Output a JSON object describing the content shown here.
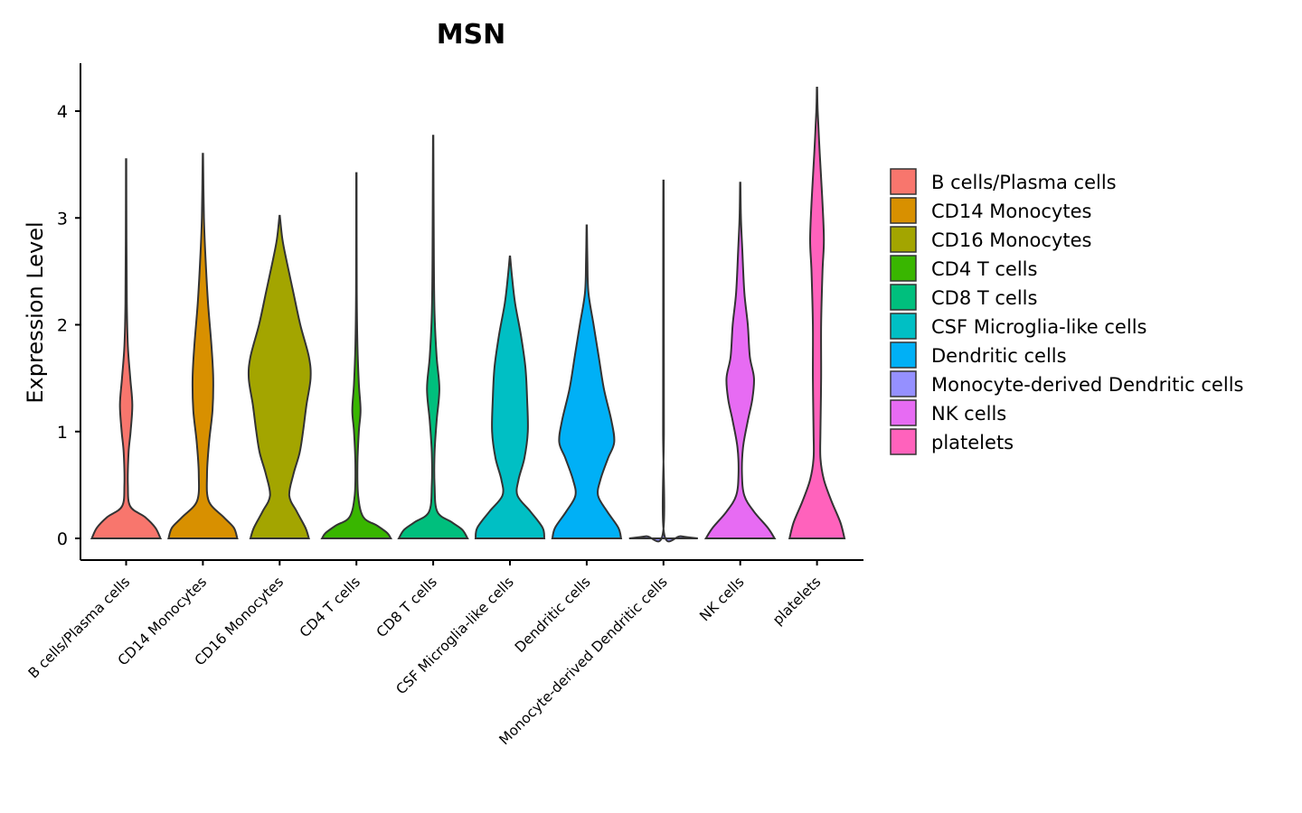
{
  "chart_data": {
    "type": "violin",
    "title": "MSN",
    "xlabel": "",
    "ylabel": "Expression Level",
    "ylim": [
      -0.2,
      4.45
    ],
    "yticks": [
      0,
      1,
      2,
      3,
      4
    ],
    "legend_position": "right",
    "categories": [
      "B cells/Plasma cells",
      "CD14 Monocytes",
      "CD16 Monocytes",
      "CD4 T cells",
      "CD8 T cells",
      "CSF Microglia-like cells",
      "Dendritic cells",
      "Monocyte-derived Dendritic cells",
      "NK cells",
      "platelets"
    ],
    "colors": [
      "#F8766D",
      "#D89000",
      "#A3A500",
      "#39B600",
      "#00BF7D",
      "#00BFC4",
      "#00B0F6",
      "#9590FF",
      "#E76BF3",
      "#FF62BC"
    ],
    "series": [
      {
        "name": "B cells/Plasma cells",
        "max": 3.55,
        "density": [
          [
            0,
            1.0
          ],
          [
            0.1,
            0.85
          ],
          [
            0.2,
            0.55
          ],
          [
            0.3,
            0.12
          ],
          [
            0.5,
            0.05
          ],
          [
            0.8,
            0.07
          ],
          [
            1.0,
            0.13
          ],
          [
            1.25,
            0.18
          ],
          [
            1.5,
            0.12
          ],
          [
            1.8,
            0.05
          ],
          [
            2.2,
            0.02
          ],
          [
            2.8,
            0.01
          ],
          [
            3.55,
            0.005
          ]
        ]
      },
      {
        "name": "CD14 Monocytes",
        "max": 3.6,
        "density": [
          [
            0,
            1.0
          ],
          [
            0.1,
            0.9
          ],
          [
            0.2,
            0.6
          ],
          [
            0.35,
            0.17
          ],
          [
            0.6,
            0.12
          ],
          [
            0.9,
            0.18
          ],
          [
            1.2,
            0.28
          ],
          [
            1.5,
            0.3
          ],
          [
            1.8,
            0.25
          ],
          [
            2.2,
            0.15
          ],
          [
            2.6,
            0.08
          ],
          [
            3.0,
            0.03
          ],
          [
            3.6,
            0.005
          ]
        ]
      },
      {
        "name": "CD16 Monocytes",
        "max": 3.02,
        "density": [
          [
            0,
            0.85
          ],
          [
            0.1,
            0.75
          ],
          [
            0.25,
            0.5
          ],
          [
            0.4,
            0.28
          ],
          [
            0.6,
            0.4
          ],
          [
            0.8,
            0.58
          ],
          [
            1.0,
            0.68
          ],
          [
            1.25,
            0.78
          ],
          [
            1.5,
            0.9
          ],
          [
            1.7,
            0.85
          ],
          [
            2.0,
            0.6
          ],
          [
            2.3,
            0.4
          ],
          [
            2.6,
            0.2
          ],
          [
            2.8,
            0.08
          ],
          [
            3.02,
            0.005
          ]
        ]
      },
      {
        "name": "CD4 T cells",
        "max": 3.42,
        "density": [
          [
            0,
            1.0
          ],
          [
            0.05,
            0.9
          ],
          [
            0.12,
            0.6
          ],
          [
            0.2,
            0.2
          ],
          [
            0.4,
            0.05
          ],
          [
            0.7,
            0.03
          ],
          [
            1.0,
            0.07
          ],
          [
            1.2,
            0.12
          ],
          [
            1.45,
            0.07
          ],
          [
            1.8,
            0.03
          ],
          [
            2.3,
            0.01
          ],
          [
            3.42,
            0.005
          ]
        ]
      },
      {
        "name": "CD8 T cells",
        "max": 3.77,
        "density": [
          [
            0,
            1.0
          ],
          [
            0.08,
            0.85
          ],
          [
            0.15,
            0.55
          ],
          [
            0.25,
            0.12
          ],
          [
            0.5,
            0.04
          ],
          [
            0.8,
            0.04
          ],
          [
            1.1,
            0.1
          ],
          [
            1.4,
            0.18
          ],
          [
            1.7,
            0.1
          ],
          [
            2.1,
            0.04
          ],
          [
            2.6,
            0.02
          ],
          [
            3.77,
            0.005
          ]
        ]
      },
      {
        "name": "CSF Microglia-like cells",
        "max": 2.64,
        "density": [
          [
            0,
            1.0
          ],
          [
            0.1,
            0.95
          ],
          [
            0.25,
            0.6
          ],
          [
            0.4,
            0.22
          ],
          [
            0.55,
            0.25
          ],
          [
            0.75,
            0.42
          ],
          [
            1.0,
            0.52
          ],
          [
            1.3,
            0.5
          ],
          [
            1.6,
            0.45
          ],
          [
            1.9,
            0.32
          ],
          [
            2.2,
            0.15
          ],
          [
            2.45,
            0.06
          ],
          [
            2.64,
            0.005
          ]
        ]
      },
      {
        "name": "Dendritic cells",
        "max": 2.93,
        "density": [
          [
            0,
            1.0
          ],
          [
            0.1,
            0.92
          ],
          [
            0.25,
            0.6
          ],
          [
            0.4,
            0.33
          ],
          [
            0.55,
            0.4
          ],
          [
            0.75,
            0.62
          ],
          [
            0.9,
            0.8
          ],
          [
            1.1,
            0.72
          ],
          [
            1.4,
            0.5
          ],
          [
            1.7,
            0.35
          ],
          [
            2.0,
            0.2
          ],
          [
            2.3,
            0.05
          ],
          [
            2.6,
            0.02
          ],
          [
            2.93,
            0.005
          ]
        ]
      },
      {
        "name": "Monocyte-derived Dendritic cells",
        "max": 3.35,
        "density": [
          [
            0,
            1.0
          ],
          [
            0.02,
            0.5
          ],
          [
            0.05,
            0.015
          ],
          [
            1.0,
            0.012
          ],
          [
            2.0,
            0.01
          ],
          [
            3.0,
            0.008
          ],
          [
            3.35,
            0.005
          ]
        ]
      },
      {
        "name": "NK cells",
        "max": 3.33,
        "density": [
          [
            0,
            1.0
          ],
          [
            0.1,
            0.8
          ],
          [
            0.25,
            0.4
          ],
          [
            0.4,
            0.12
          ],
          [
            0.6,
            0.05
          ],
          [
            0.85,
            0.08
          ],
          [
            1.1,
            0.22
          ],
          [
            1.3,
            0.35
          ],
          [
            1.5,
            0.4
          ],
          [
            1.7,
            0.28
          ],
          [
            2.0,
            0.22
          ],
          [
            2.3,
            0.12
          ],
          [
            2.7,
            0.06
          ],
          [
            3.0,
            0.02
          ],
          [
            3.33,
            0.005
          ]
        ]
      },
      {
        "name": "platelets",
        "max": 4.22,
        "density": [
          [
            0,
            0.8
          ],
          [
            0.15,
            0.68
          ],
          [
            0.35,
            0.42
          ],
          [
            0.55,
            0.2
          ],
          [
            0.75,
            0.1
          ],
          [
            1.0,
            0.1
          ],
          [
            1.5,
            0.12
          ],
          [
            2.0,
            0.12
          ],
          [
            2.5,
            0.16
          ],
          [
            2.8,
            0.2
          ],
          [
            3.2,
            0.15
          ],
          [
            3.6,
            0.08
          ],
          [
            4.0,
            0.02
          ],
          [
            4.22,
            0.005
          ]
        ]
      }
    ]
  }
}
